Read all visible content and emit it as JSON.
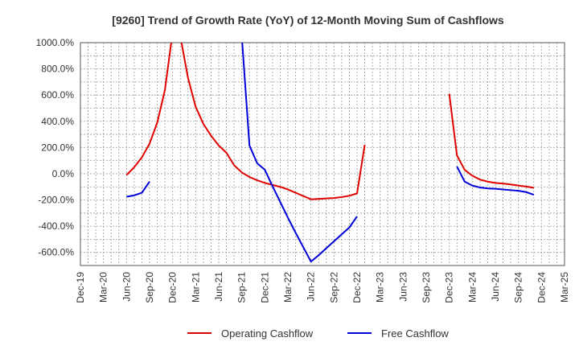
{
  "chart_data": {
    "type": "line",
    "title": "[9260]  Trend of Growth Rate (YoY) of 12-Month Moving Sum of Cashflows",
    "ylim": [
      -700,
      1000
    ],
    "y_ticks": [
      1000,
      800,
      600,
      400,
      200,
      0,
      -200,
      -400,
      -600
    ],
    "y_tick_labels": [
      "1000.0%",
      "800.0%",
      "600.0%",
      "400.0%",
      "200.0%",
      "0.0%",
      "-200.0%",
      "-400.0%",
      "-600.0%"
    ],
    "x_tick_labels": [
      "Dec-19",
      "Mar-20",
      "Jun-20",
      "Sep-20",
      "Dec-20",
      "Mar-21",
      "Jun-21",
      "Sep-21",
      "Dec-21",
      "Mar-22",
      "Jun-22",
      "Sep-22",
      "Dec-22",
      "Mar-23",
      "Jun-23",
      "Sep-23",
      "Dec-23",
      "Mar-24",
      "Jun-24",
      "Sep-24",
      "Dec-24",
      "Mar-25"
    ],
    "grid": true,
    "legend_position": "bottom",
    "series": [
      {
        "name": "Operating Cashflow",
        "color": "#e00000",
        "points": [
          [
            "Jun-20",
            -10
          ],
          [
            "Jul-20",
            50
          ],
          [
            "Aug-20",
            125
          ],
          [
            "Sep-20",
            230
          ],
          [
            "Oct-20",
            390
          ],
          [
            "Nov-20",
            640
          ],
          [
            "Dec-20",
            1080
          ],
          [
            "Jan-21",
            1050
          ],
          [
            "Feb-21",
            730
          ],
          [
            "Mar-21",
            510
          ],
          [
            "Apr-21",
            380
          ],
          [
            "May-21",
            290
          ],
          [
            "Jun-21",
            215
          ],
          [
            "Jul-21",
            160
          ],
          [
            "Aug-21",
            65
          ],
          [
            "Sep-21",
            10
          ],
          [
            "Oct-21",
            -25
          ],
          [
            "Nov-21",
            -50
          ],
          [
            "Dec-21",
            -70
          ],
          [
            "Jan-22",
            -85
          ],
          [
            "Feb-22",
            -100
          ],
          [
            "Mar-22",
            -120
          ],
          [
            "Apr-22",
            -145
          ],
          [
            "May-22",
            -170
          ],
          [
            "Jun-22",
            -195
          ],
          [
            "Jul-22",
            -192
          ],
          [
            "Aug-22",
            -188
          ],
          [
            "Sep-22",
            -185
          ],
          [
            "Oct-22",
            -178
          ],
          [
            "Nov-22",
            -168
          ],
          [
            "Dec-22",
            -150
          ],
          [
            "Jan-23",
            220
          ],
          null,
          [
            "Dec-23",
            610
          ],
          [
            "Jan-24",
            140
          ],
          [
            "Feb-24",
            30
          ],
          [
            "Mar-24",
            -15
          ],
          [
            "Apr-24",
            -45
          ],
          [
            "May-24",
            -60
          ],
          [
            "Jun-24",
            -70
          ],
          [
            "Jul-24",
            -75
          ],
          [
            "Aug-24",
            -82
          ],
          [
            "Sep-24",
            -90
          ],
          [
            "Oct-24",
            -98
          ],
          [
            "Nov-24",
            -107
          ]
        ]
      },
      {
        "name": "Free Cashflow",
        "color": "#0000d8",
        "points": [
          [
            "Jun-20",
            -175
          ],
          [
            "Jul-20",
            -165
          ],
          [
            "Aug-20",
            -145
          ],
          [
            "Sep-20",
            -60
          ],
          null,
          [
            "Sep-21",
            1050
          ],
          [
            "Oct-21",
            215
          ],
          [
            "Nov-21",
            80
          ],
          [
            "Dec-21",
            30
          ],
          [
            "Jan-22",
            -95
          ],
          [
            "Feb-22",
            -215
          ],
          [
            "Mar-22",
            -335
          ],
          [
            "Apr-22",
            -450
          ],
          [
            "May-22",
            -560
          ],
          [
            "Jun-22",
            -670
          ],
          [
            "Jul-22",
            -622
          ],
          [
            "Aug-22",
            -568
          ],
          [
            "Sep-22",
            -515
          ],
          [
            "Oct-22",
            -462
          ],
          [
            "Nov-22",
            -410
          ],
          [
            "Dec-22",
            -325
          ],
          null,
          [
            "Jan-24",
            55
          ],
          [
            "Feb-24",
            -60
          ],
          [
            "Mar-24",
            -90
          ],
          [
            "Apr-24",
            -105
          ],
          [
            "May-24",
            -112
          ],
          [
            "Jun-24",
            -115
          ],
          [
            "Jul-24",
            -120
          ],
          [
            "Aug-24",
            -125
          ],
          [
            "Sep-24",
            -130
          ],
          [
            "Oct-24",
            -140
          ],
          [
            "Nov-24",
            -160
          ]
        ]
      }
    ]
  }
}
